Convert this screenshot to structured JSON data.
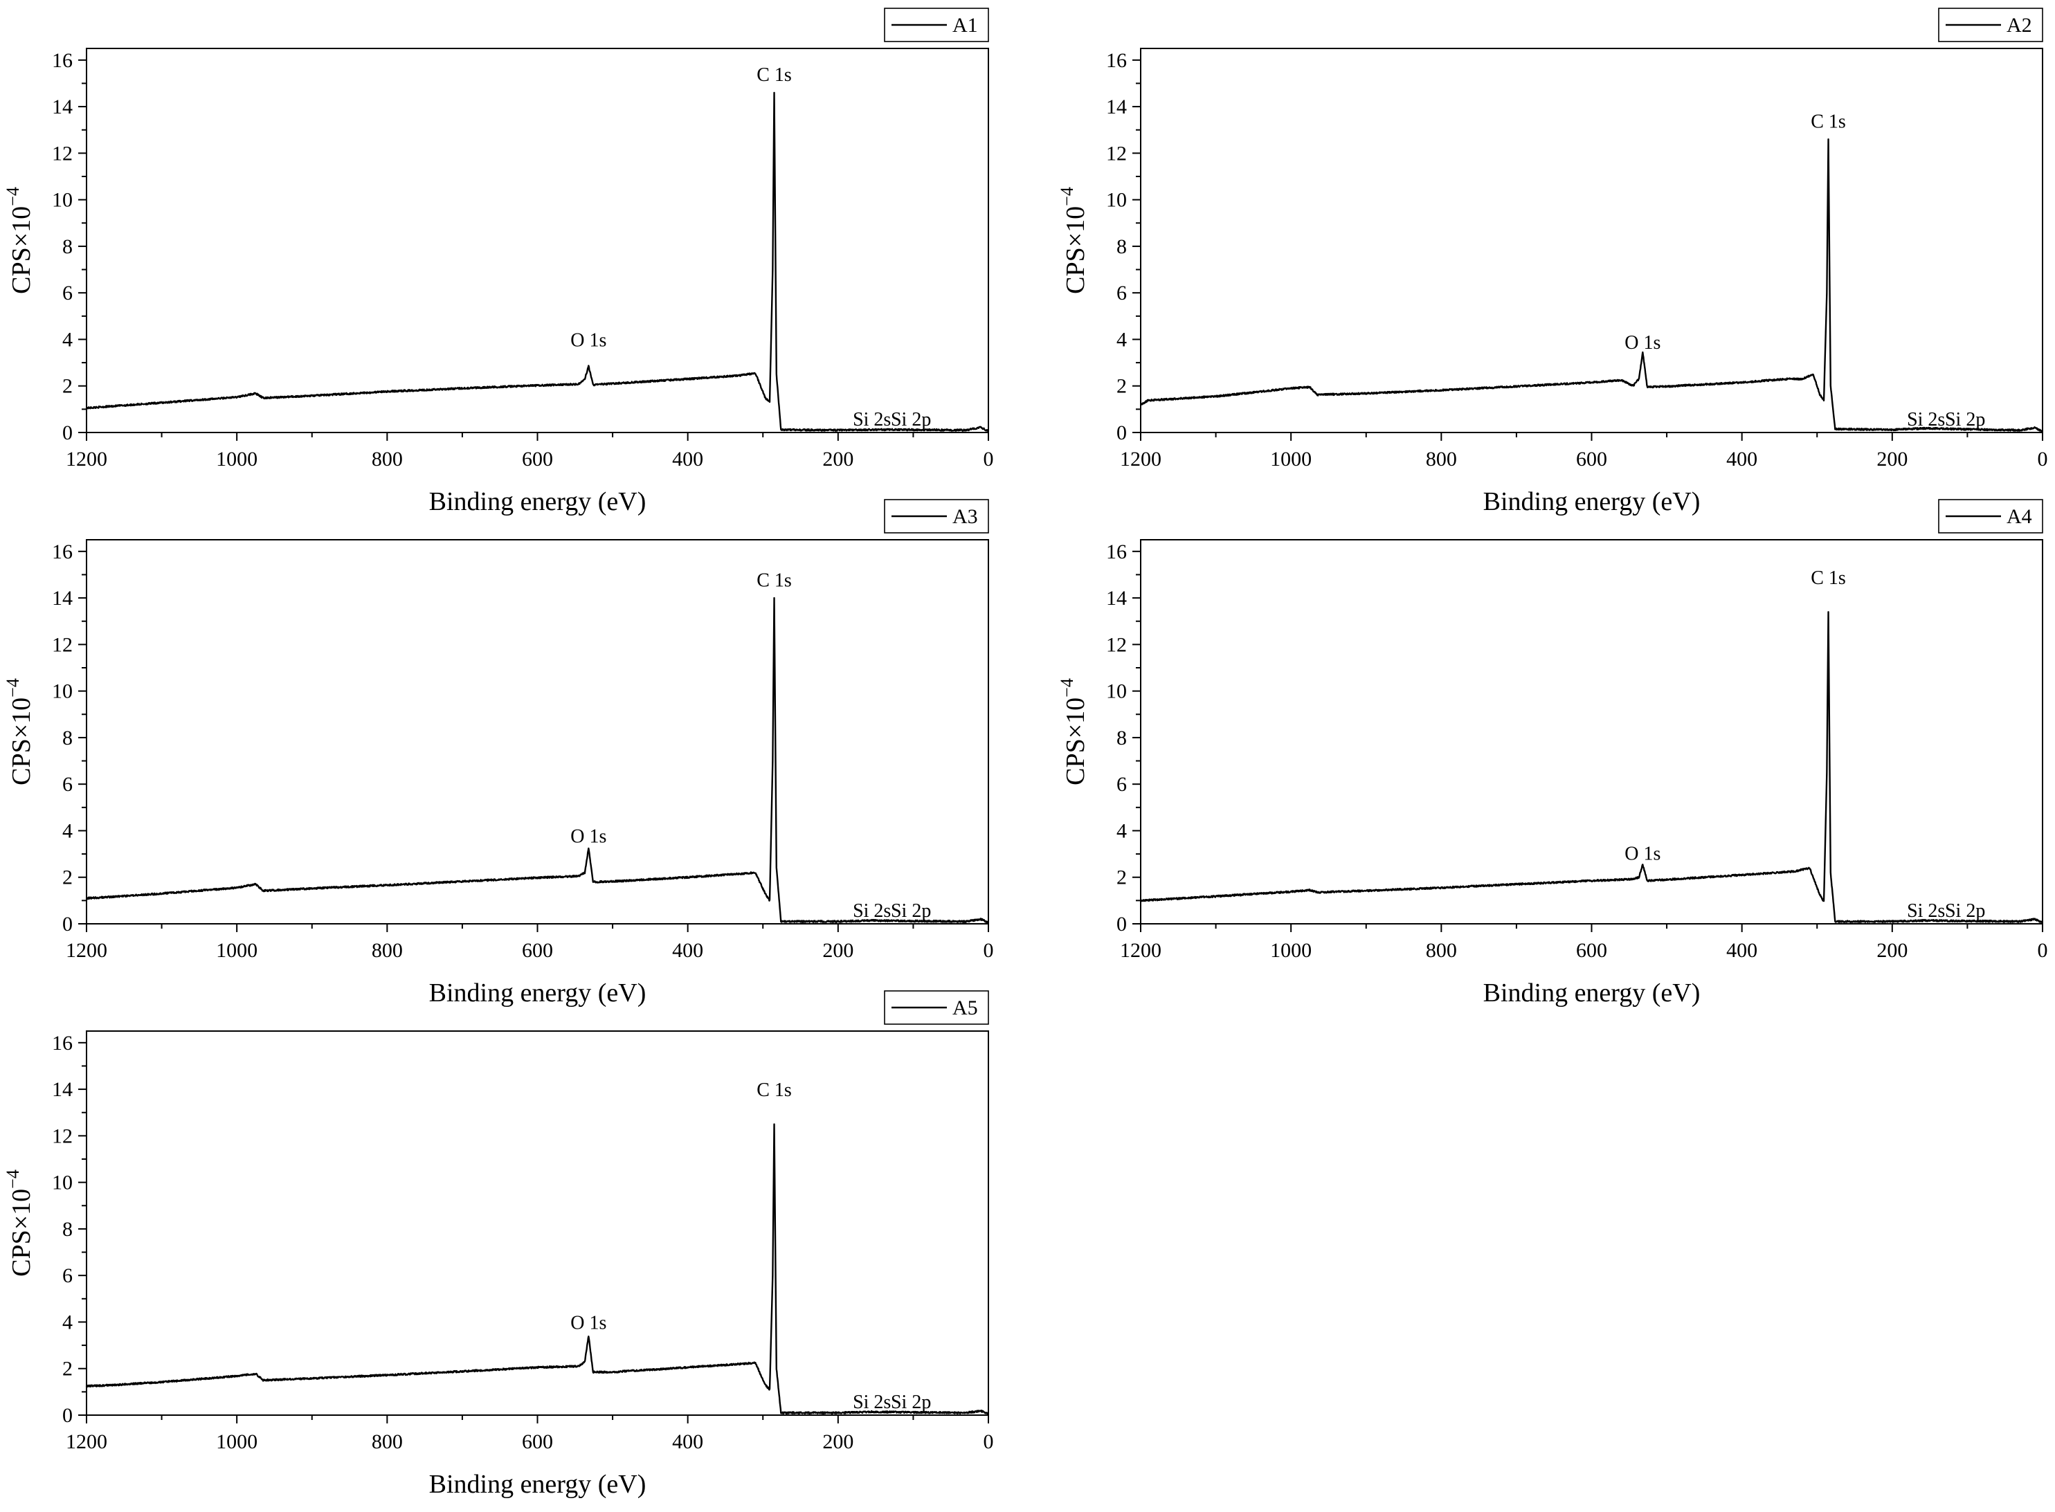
{
  "chart_data": [
    {
      "type": "line",
      "xlabel": "Binding energy (eV)",
      "ylabel": "CPS×10",
      "ylabel_exponent": "−4",
      "xlim": [
        1200,
        0
      ],
      "ylim": [
        0,
        16.5
      ],
      "x_ticks": [
        1200,
        1000,
        800,
        600,
        400,
        200,
        0
      ],
      "y_ticks": [
        0,
        2,
        4,
        6,
        8,
        10,
        12,
        14,
        16
      ],
      "legend_position": "top-right",
      "series": [
        {
          "name": "A1",
          "x": [
            1200,
            1170,
            1100,
            1000,
            975,
            965,
            900,
            800,
            700,
            600,
            545,
            537,
            532,
            526,
            500,
            400,
            330,
            310,
            297,
            291,
            287,
            285,
            282,
            276,
            200,
            155,
            103,
            30,
            10,
            0
          ],
          "y": [
            1.05,
            1.12,
            1.28,
            1.52,
            1.68,
            1.48,
            1.58,
            1.76,
            1.9,
            2.02,
            2.08,
            2.3,
            2.85,
            2.05,
            2.1,
            2.3,
            2.45,
            2.55,
            1.5,
            1.3,
            7.0,
            14.6,
            2.5,
            0.12,
            0.1,
            0.12,
            0.12,
            0.1,
            0.22,
            0.05
          ]
        }
      ],
      "peak_labels": [
        {
          "text": "C 1s",
          "x": 285,
          "y": 15.1
        },
        {
          "text": "O 1s",
          "x": 532,
          "y": 3.7
        },
        {
          "text": "Si 2s",
          "x": 155,
          "y": 0.3
        },
        {
          "text": "Si 2p",
          "x": 103,
          "y": 0.3
        }
      ]
    },
    {
      "type": "line",
      "xlabel": "Binding energy (eV)",
      "ylabel": "CPS×10",
      "ylabel_exponent": "−4",
      "xlim": [
        1200,
        0
      ],
      "ylim": [
        0,
        16.5
      ],
      "x_ticks": [
        1200,
        1000,
        800,
        600,
        400,
        200,
        0
      ],
      "y_ticks": [
        0,
        2,
        4,
        6,
        8,
        10,
        12,
        14,
        16
      ],
      "legend_position": "top-right",
      "series": [
        {
          "name": "A2",
          "x": [
            1200,
            1190,
            1100,
            1000,
            975,
            965,
            900,
            800,
            700,
            600,
            560,
            545,
            537,
            532,
            526,
            500,
            400,
            340,
            320,
            305,
            296,
            291,
            287,
            285,
            282,
            276,
            200,
            155,
            103,
            30,
            10,
            0
          ],
          "y": [
            1.2,
            1.38,
            1.55,
            1.9,
            1.95,
            1.62,
            1.68,
            1.82,
            1.98,
            2.15,
            2.25,
            2.0,
            2.3,
            3.45,
            1.95,
            1.98,
            2.15,
            2.3,
            2.3,
            2.5,
            1.6,
            1.4,
            6.0,
            12.6,
            2.0,
            0.15,
            0.12,
            0.18,
            0.14,
            0.1,
            0.2,
            0.05
          ]
        }
      ],
      "peak_labels": [
        {
          "text": "C 1s",
          "x": 285,
          "y": 13.1
        },
        {
          "text": "O 1s",
          "x": 532,
          "y": 3.6
        },
        {
          "text": "Si 2s",
          "x": 155,
          "y": 0.3
        },
        {
          "text": "Si 2p",
          "x": 103,
          "y": 0.3
        }
      ]
    },
    {
      "type": "line",
      "xlabel": "Binding energy (eV)",
      "ylabel": "CPS×10",
      "ylabel_exponent": "−4",
      "xlim": [
        1200,
        0
      ],
      "ylim": [
        0,
        16.5
      ],
      "x_ticks": [
        1200,
        1000,
        800,
        600,
        400,
        200,
        0
      ],
      "y_ticks": [
        0,
        2,
        4,
        6,
        8,
        10,
        12,
        14,
        16
      ],
      "legend_position": "top-right",
      "series": [
        {
          "name": "A3",
          "x": [
            1200,
            1170,
            1100,
            1000,
            975,
            965,
            900,
            800,
            700,
            600,
            545,
            537,
            532,
            526,
            500,
            400,
            330,
            310,
            297,
            291,
            287,
            285,
            282,
            276,
            200,
            155,
            103,
            30,
            10,
            0
          ],
          "y": [
            1.1,
            1.15,
            1.3,
            1.55,
            1.7,
            1.42,
            1.52,
            1.66,
            1.82,
            1.98,
            2.05,
            2.2,
            3.25,
            1.8,
            1.82,
            2.0,
            2.15,
            2.2,
            1.3,
            1.0,
            7.0,
            14.0,
            2.4,
            0.1,
            0.1,
            0.14,
            0.12,
            0.1,
            0.2,
            0.05
          ]
        }
      ],
      "peak_labels": [
        {
          "text": "C 1s",
          "x": 285,
          "y": 14.5
        },
        {
          "text": "O 1s",
          "x": 532,
          "y": 3.5
        },
        {
          "text": "Si 2s",
          "x": 155,
          "y": 0.3
        },
        {
          "text": "Si 2p",
          "x": 103,
          "y": 0.3
        }
      ]
    },
    {
      "type": "line",
      "xlabel": "Binding energy (eV)",
      "ylabel": "CPS×10",
      "ylabel_exponent": "−4",
      "xlim": [
        1200,
        0
      ],
      "ylim": [
        0,
        16.5
      ],
      "x_ticks": [
        1200,
        1000,
        800,
        600,
        400,
        200,
        0
      ],
      "y_ticks": [
        0,
        2,
        4,
        6,
        8,
        10,
        12,
        14,
        16
      ],
      "legend_position": "top-right",
      "series": [
        {
          "name": "A4",
          "x": [
            1200,
            1170,
            1100,
            1000,
            975,
            965,
            900,
            800,
            700,
            600,
            545,
            537,
            532,
            526,
            500,
            400,
            330,
            310,
            297,
            291,
            287,
            285,
            282,
            276,
            200,
            155,
            103,
            30,
            10,
            0
          ],
          "y": [
            1.0,
            1.05,
            1.18,
            1.38,
            1.45,
            1.35,
            1.42,
            1.55,
            1.7,
            1.85,
            1.92,
            2.0,
            2.55,
            1.85,
            1.9,
            2.1,
            2.25,
            2.4,
            1.3,
            0.95,
            6.5,
            13.4,
            2.2,
            0.1,
            0.1,
            0.14,
            0.12,
            0.1,
            0.2,
            0.05
          ]
        }
      ],
      "peak_labels": [
        {
          "text": "C 1s",
          "x": 285,
          "y": 14.6
        },
        {
          "text": "O 1s",
          "x": 532,
          "y": 2.75
        },
        {
          "text": "Si 2s",
          "x": 155,
          "y": 0.3
        },
        {
          "text": "Si 2p",
          "x": 103,
          "y": 0.3
        }
      ]
    },
    {
      "type": "line",
      "xlabel": "Binding energy (eV)",
      "ylabel": "CPS×10",
      "ylabel_exponent": "−4",
      "xlim": [
        1200,
        0
      ],
      "ylim": [
        0,
        16.5
      ],
      "x_ticks": [
        1200,
        1000,
        800,
        600,
        400,
        200,
        0
      ],
      "y_ticks": [
        0,
        2,
        4,
        6,
        8,
        10,
        12,
        14,
        16
      ],
      "legend_position": "top-right",
      "series": [
        {
          "name": "A5",
          "x": [
            1200,
            1170,
            1100,
            1000,
            975,
            965,
            900,
            800,
            700,
            600,
            545,
            537,
            532,
            526,
            500,
            400,
            330,
            310,
            297,
            291,
            287,
            285,
            282,
            276,
            200,
            155,
            103,
            30,
            10,
            0
          ],
          "y": [
            1.25,
            1.28,
            1.42,
            1.68,
            1.78,
            1.5,
            1.58,
            1.72,
            1.88,
            2.05,
            2.1,
            2.3,
            3.4,
            1.85,
            1.85,
            2.05,
            2.2,
            2.25,
            1.3,
            1.1,
            6.0,
            12.5,
            2.0,
            0.1,
            0.1,
            0.14,
            0.12,
            0.1,
            0.18,
            0.05
          ]
        }
      ],
      "peak_labels": [
        {
          "text": "C 1s",
          "x": 285,
          "y": 13.7
        },
        {
          "text": "O 1s",
          "x": 532,
          "y": 3.7
        },
        {
          "text": "Si 2s",
          "x": 155,
          "y": 0.3
        },
        {
          "text": "Si 2p",
          "x": 103,
          "y": 0.3
        }
      ]
    }
  ]
}
